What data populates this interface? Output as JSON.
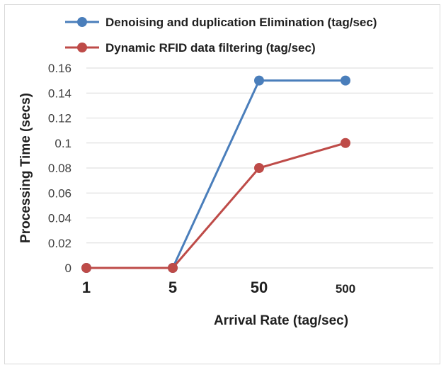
{
  "chart_data": {
    "type": "line",
    "categories": [
      "1",
      "5",
      "50",
      "500"
    ],
    "series": [
      {
        "name": "Denoising  and duplication Elimination (tag/sec)",
        "values": [
          0,
          0,
          0.15,
          0.15
        ],
        "color": "#4a7ebb"
      },
      {
        "name": "Dynamic RFID data filtering  (tag/sec)",
        "values": [
          0,
          0,
          0.08,
          0.1
        ],
        "color": "#be4b48"
      }
    ],
    "yticks": [
      "0",
      "0.02",
      "0.04",
      "0.06",
      "0.08",
      "0.1",
      "0.12",
      "0.14",
      "0.16"
    ],
    "ylim": [
      0,
      0.16
    ],
    "xlabel": "Arrival Rate (tag/sec)",
    "ylabel": "Processing Time (secs)",
    "grid": true,
    "legend_position": "top"
  }
}
